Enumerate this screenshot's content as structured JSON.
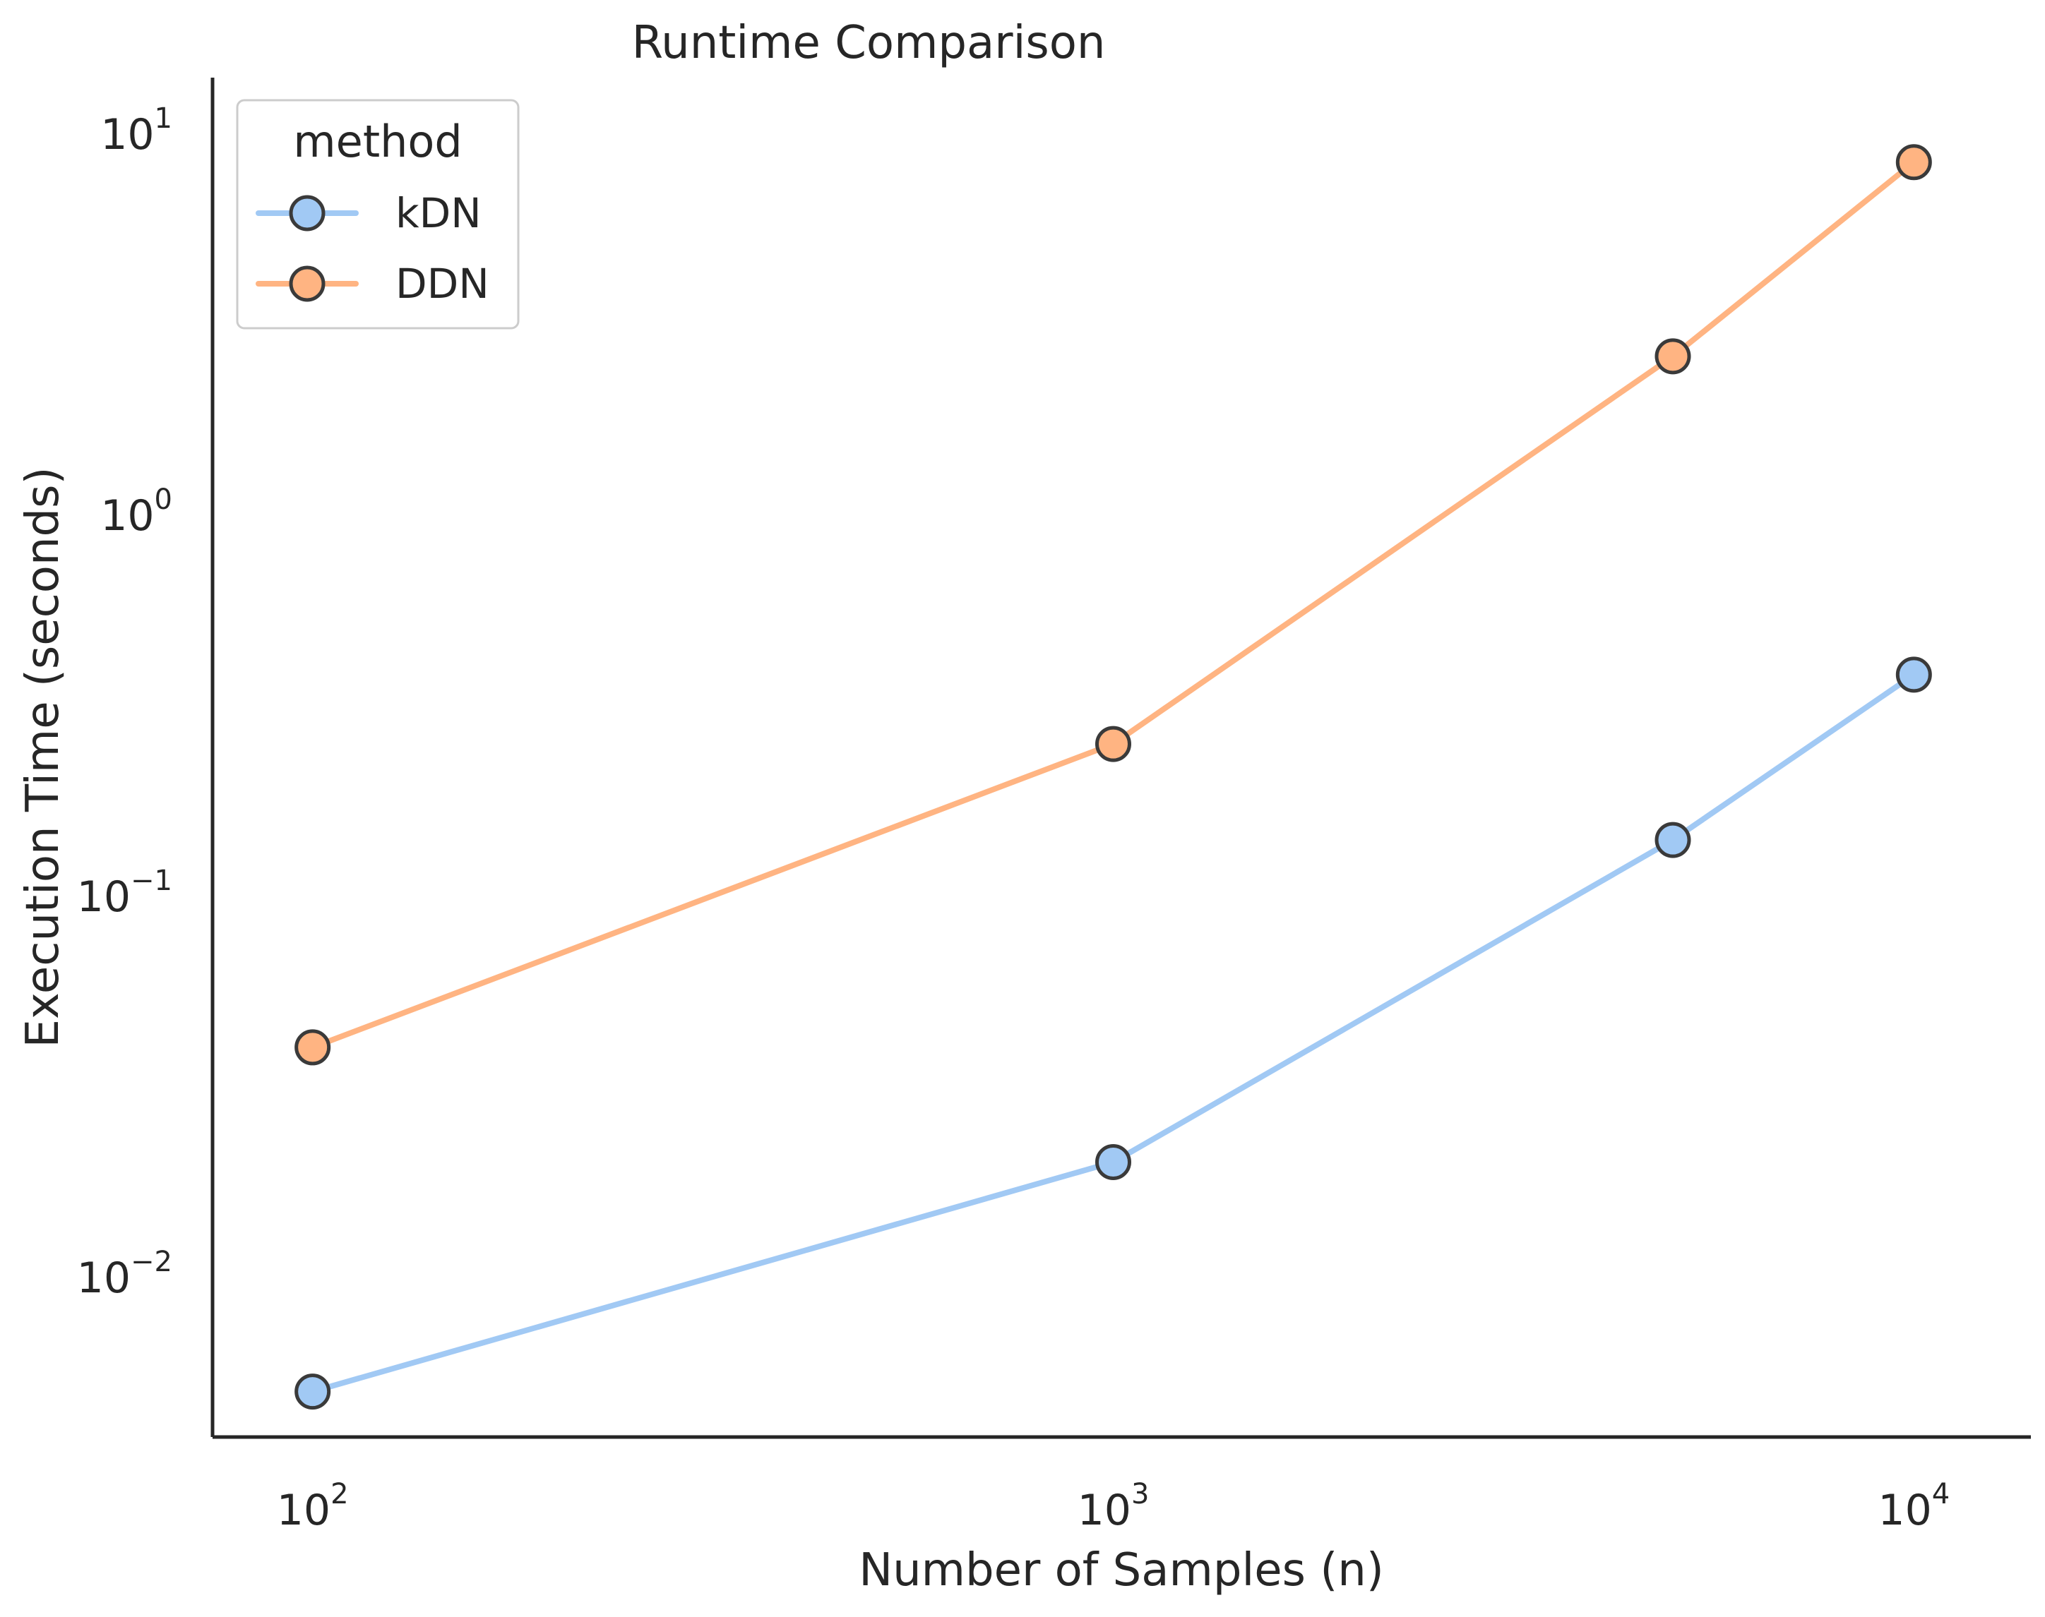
{
  "chart_data": {
    "type": "line",
    "title": "Runtime Comparison",
    "xlabel": "Number of Samples (n)",
    "ylabel": "Execution Time (seconds)",
    "xscale": "log",
    "yscale": "log",
    "xlim": [
      75,
      14000
    ],
    "ylim": [
      0.0038,
      14
    ],
    "x_ticks": [
      {
        "base": "10",
        "exp": "2",
        "value": 100
      },
      {
        "base": "10",
        "exp": "3",
        "value": 1000
      },
      {
        "base": "10",
        "exp": "4",
        "value": 10000
      }
    ],
    "y_ticks": [
      {
        "base": "10",
        "exp": "−2",
        "value": 0.01
      },
      {
        "base": "10",
        "exp": "−1",
        "value": 0.1
      },
      {
        "base": "10",
        "exp": "0",
        "value": 1
      },
      {
        "base": "10",
        "exp": "1",
        "value": 10
      }
    ],
    "grid": false,
    "legend": {
      "title": "method",
      "position": "top-left"
    },
    "x": [
      100,
      1000,
      5000,
      10000
    ],
    "series": [
      {
        "name": "kDN",
        "color": "#a1c9f4",
        "values": [
          0.005,
          0.02,
          0.14,
          0.38
        ]
      },
      {
        "name": "DDN",
        "color": "#ffb482",
        "values": [
          0.04,
          0.25,
          2.6,
          8.4
        ]
      }
    ]
  }
}
